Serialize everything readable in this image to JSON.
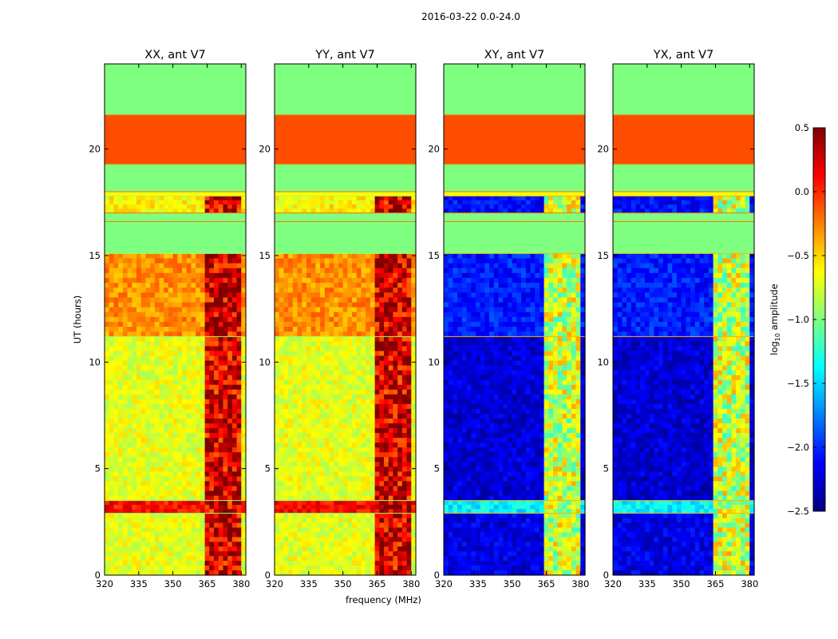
{
  "chart_data": {
    "type": "heatmap",
    "suptitle": "2016-03-22 0.0-24.0",
    "xlabel": "frequency (MHz)",
    "ylabel": "UT (hours)",
    "xlim": [
      320,
      382
    ],
    "ylim": [
      0,
      24
    ],
    "xticks": [
      "320",
      "335",
      "350",
      "365",
      "380"
    ],
    "xtick_values": [
      320,
      335,
      350,
      365,
      380
    ],
    "yticks": [
      "0",
      "5",
      "10",
      "15",
      "20"
    ],
    "ytick_values": [
      0,
      5,
      10,
      15,
      20
    ],
    "panels": [
      {
        "title": "XX, ant V7",
        "pol": "XX",
        "regime": "co"
      },
      {
        "title": "YY, ant V7",
        "pol": "YY",
        "regime": "co"
      },
      {
        "title": "XY, ant V7",
        "pol": "XY",
        "regime": "cross"
      },
      {
        "title": "YX, ant V7",
        "pol": "YX",
        "regime": "cross"
      }
    ],
    "colorbar": {
      "label": "log",
      "label_sub": "10",
      "label_rest": " amplitude",
      "range": [
        -2.5,
        0.5
      ],
      "ticks": [
        "0.5",
        "0.0",
        "−0.5",
        "−1.0",
        "−1.5",
        "−2.0",
        "−2.5"
      ],
      "tick_values": [
        0.5,
        0.0,
        -0.5,
        -1.0,
        -1.5,
        -2.0,
        -2.5
      ],
      "colormap": "jet"
    },
    "flagged_periods_hours": [
      [
        18.0,
        21.6
      ],
      [
        16.6,
        17.2
      ],
      [
        21.6,
        24.0
      ],
      [
        15.0,
        16.6
      ]
    ],
    "time_bands_hours": [
      {
        "range": [
          21.6,
          24.0
        ],
        "value": -1.0,
        "note": "flagged"
      },
      {
        "range": [
          19.3,
          21.6
        ],
        "value": -0.1,
        "note": "flagged"
      },
      {
        "range": [
          18.0,
          19.3
        ],
        "value": -1.0,
        "note": "flagged"
      },
      {
        "range": [
          17.8,
          18.0
        ],
        "value": -0.65
      },
      {
        "range": [
          17.0,
          17.8
        ],
        "co": -0.6,
        "cross": -2.1
      },
      {
        "range": [
          16.6,
          17.0
        ],
        "value": -1.0,
        "note": "flagged"
      },
      {
        "range": [
          15.1,
          16.6
        ],
        "value": -1.0,
        "note": "flagged"
      },
      {
        "range": [
          11.2,
          15.1
        ],
        "co": -0.3,
        "cross": -2.05
      },
      {
        "range": [
          3.5,
          11.2
        ],
        "co": -0.7,
        "cross": -2.25
      },
      {
        "range": [
          2.9,
          3.5
        ],
        "co": 0.1,
        "cross": -1.4
      },
      {
        "range": [
          0.0,
          2.9
        ],
        "co": -0.7,
        "cross": -2.2
      }
    ],
    "rfi_column_band_MHz": [
      364,
      380
    ],
    "rfi_column_value": {
      "co": 0.25,
      "cross": -0.8
    }
  }
}
